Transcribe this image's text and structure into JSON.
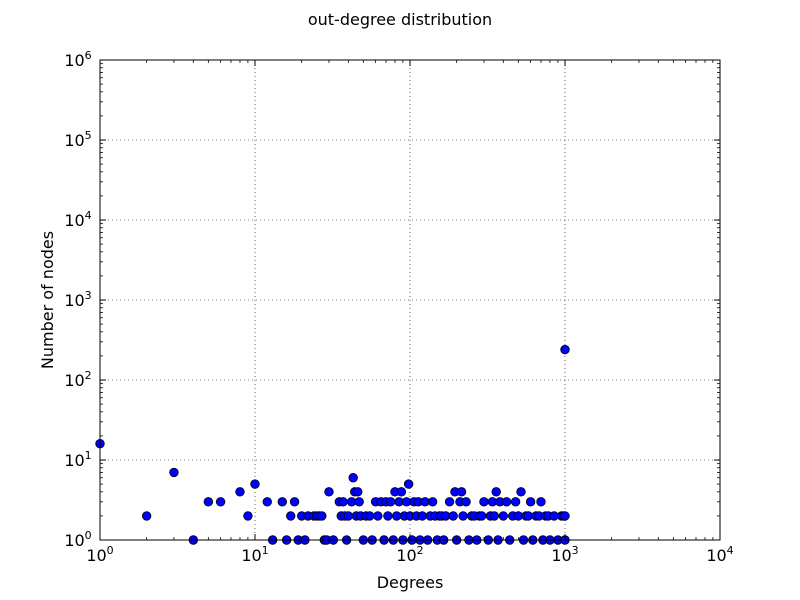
{
  "chart_data": {
    "type": "scatter",
    "title": "out-degree distribution",
    "xlabel": "Degrees",
    "ylabel": "Number of nodes",
    "xscale": "log",
    "yscale": "log",
    "xlim": [
      1,
      10000
    ],
    "ylim": [
      1,
      1000000
    ],
    "xticks": [
      {
        "value": 1,
        "base": "10",
        "exp": "0"
      },
      {
        "value": 10,
        "base": "10",
        "exp": "1"
      },
      {
        "value": 100,
        "base": "10",
        "exp": "2"
      },
      {
        "value": 1000,
        "base": "10",
        "exp": "3"
      },
      {
        "value": 10000,
        "base": "10",
        "exp": "4"
      }
    ],
    "yticks": [
      {
        "value": 1,
        "base": "10",
        "exp": "0"
      },
      {
        "value": 10,
        "base": "10",
        "exp": "1"
      },
      {
        "value": 100,
        "base": "10",
        "exp": "2"
      },
      {
        "value": 1000,
        "base": "10",
        "exp": "3"
      },
      {
        "value": 10000,
        "base": "10",
        "exp": "4"
      },
      {
        "value": 100000,
        "base": "10",
        "exp": "5"
      },
      {
        "value": 1000000,
        "base": "10",
        "exp": "6"
      }
    ],
    "grid": true,
    "marker_color": "#0000ff",
    "marker_edge_color": "#000000",
    "points": [
      [
        1,
        16
      ],
      [
        2,
        2
      ],
      [
        3,
        7
      ],
      [
        4,
        1
      ],
      [
        5,
        3
      ],
      [
        6,
        3
      ],
      [
        8,
        4
      ],
      [
        9,
        2
      ],
      [
        10,
        5
      ],
      [
        12,
        3
      ],
      [
        13,
        1
      ],
      [
        15,
        3
      ],
      [
        16,
        1
      ],
      [
        17,
        2
      ],
      [
        18,
        3
      ],
      [
        19,
        1
      ],
      [
        20,
        2
      ],
      [
        21,
        1
      ],
      [
        22,
        2
      ],
      [
        24,
        2
      ],
      [
        25,
        2
      ],
      [
        26,
        2
      ],
      [
        27,
        2
      ],
      [
        28,
        1
      ],
      [
        29,
        1
      ],
      [
        30,
        4
      ],
      [
        32,
        1
      ],
      [
        35,
        3
      ],
      [
        36,
        2
      ],
      [
        37,
        3
      ],
      [
        38,
        2
      ],
      [
        39,
        1
      ],
      [
        40,
        2
      ],
      [
        42,
        3
      ],
      [
        43,
        6
      ],
      [
        44,
        4
      ],
      [
        45,
        2
      ],
      [
        46,
        4
      ],
      [
        47,
        3
      ],
      [
        48,
        2
      ],
      [
        50,
        1
      ],
      [
        52,
        2
      ],
      [
        55,
        2
      ],
      [
        57,
        1
      ],
      [
        60,
        3
      ],
      [
        62,
        2
      ],
      [
        65,
        3
      ],
      [
        68,
        1
      ],
      [
        70,
        3
      ],
      [
        72,
        2
      ],
      [
        75,
        3
      ],
      [
        78,
        1
      ],
      [
        80,
        4
      ],
      [
        82,
        2
      ],
      [
        85,
        3
      ],
      [
        88,
        4
      ],
      [
        90,
        1
      ],
      [
        92,
        2
      ],
      [
        95,
        3
      ],
      [
        98,
        5
      ],
      [
        100,
        2
      ],
      [
        103,
        1
      ],
      [
        106,
        3
      ],
      [
        110,
        2
      ],
      [
        113,
        3
      ],
      [
        116,
        1
      ],
      [
        120,
        2
      ],
      [
        125,
        3
      ],
      [
        130,
        1
      ],
      [
        135,
        2
      ],
      [
        140,
        3
      ],
      [
        145,
        2
      ],
      [
        150,
        1
      ],
      [
        155,
        2
      ],
      [
        160,
        2
      ],
      [
        165,
        1
      ],
      [
        170,
        2
      ],
      [
        180,
        3
      ],
      [
        190,
        2
      ],
      [
        195,
        4
      ],
      [
        200,
        1
      ],
      [
        210,
        3
      ],
      [
        215,
        4
      ],
      [
        220,
        2
      ],
      [
        230,
        3
      ],
      [
        240,
        1
      ],
      [
        250,
        2
      ],
      [
        260,
        2
      ],
      [
        270,
        1
      ],
      [
        280,
        2
      ],
      [
        290,
        2
      ],
      [
        300,
        3
      ],
      [
        320,
        1
      ],
      [
        330,
        2
      ],
      [
        340,
        3
      ],
      [
        350,
        2
      ],
      [
        360,
        4
      ],
      [
        370,
        1
      ],
      [
        380,
        3
      ],
      [
        400,
        2
      ],
      [
        420,
        3
      ],
      [
        440,
        1
      ],
      [
        460,
        2
      ],
      [
        480,
        3
      ],
      [
        500,
        2
      ],
      [
        520,
        4
      ],
      [
        540,
        1
      ],
      [
        560,
        2
      ],
      [
        580,
        2
      ],
      [
        600,
        3
      ],
      [
        620,
        1
      ],
      [
        650,
        2
      ],
      [
        680,
        2
      ],
      [
        700,
        3
      ],
      [
        720,
        1
      ],
      [
        750,
        2
      ],
      [
        780,
        2
      ],
      [
        800,
        1
      ],
      [
        850,
        2
      ],
      [
        900,
        1
      ],
      [
        950,
        2
      ],
      [
        980,
        2
      ],
      [
        1000,
        240
      ],
      [
        1000,
        2
      ],
      [
        1000,
        1
      ]
    ]
  }
}
